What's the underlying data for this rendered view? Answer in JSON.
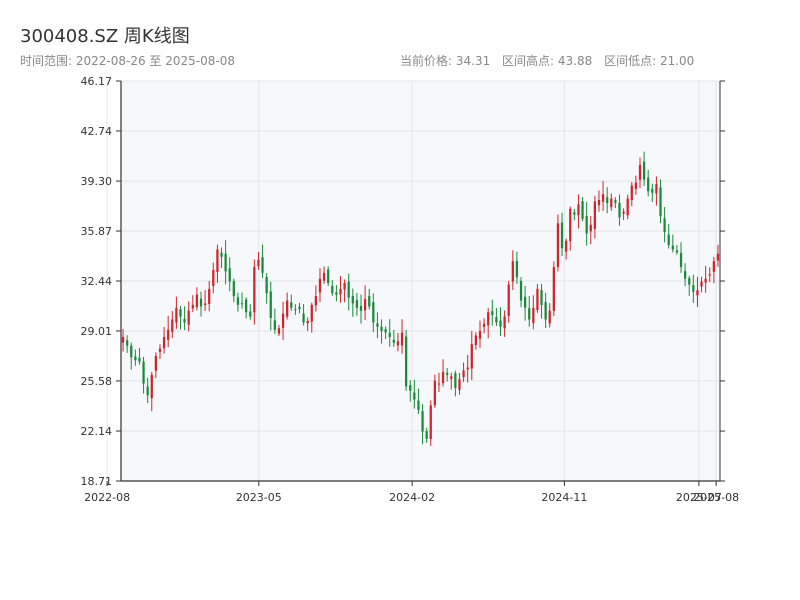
{
  "header": {
    "title": "300408.SZ 周K线图",
    "range_text": "时间范围: 2022-08-26 至 2025-08-08",
    "current_price": "当前价格: 34.31",
    "high": "区间高点: 43.88",
    "low": "区间低点: 21.00"
  },
  "colors": {
    "up": "#d0242b",
    "down": "#1a8a3a",
    "background": "#f6f8fb",
    "grid": "#e3e6ea",
    "axis": "#333333"
  },
  "chart_data": {
    "type": "candlestick",
    "title": "300408.SZ 周K线图",
    "xlabel": "",
    "ylabel": "",
    "ylim": [
      18.71,
      46.17
    ],
    "yticks": [
      "18.71",
      "22.14",
      "25.58",
      "29.01",
      "32.44",
      "35.87",
      "39.30",
      "42.74",
      "46.17"
    ],
    "xticks": [
      "2022-08",
      "2023-05",
      "2024-02",
      "2024-11",
      "2025-07",
      "2025-08"
    ],
    "grid": true,
    "start_date": "2022-08-26",
    "end_date": "2025-08-08",
    "close_series": [
      28.6,
      28.0,
      27.2,
      27.0,
      26.9,
      25.4,
      24.6,
      26.0,
      27.3,
      27.8,
      28.6,
      29.1,
      29.8,
      30.6,
      30.0,
      29.6,
      30.4,
      30.8,
      31.5,
      30.7,
      30.9,
      31.9,
      33.2,
      34.6,
      34.1,
      33.1,
      32.4,
      31.4,
      30.8,
      30.9,
      30.3,
      30.0,
      33.4,
      33.9,
      33.0,
      31.6,
      29.9,
      29.1,
      29.2,
      30.2,
      31.1,
      30.6,
      30.5,
      30.5,
      29.6,
      29.7,
      30.8,
      31.4,
      32.6,
      33.0,
      32.3,
      31.6,
      31.5,
      31.9,
      32.3,
      31.3,
      30.9,
      30.6,
      30.4,
      31.2,
      30.7,
      29.6,
      29.3,
      29.0,
      28.9,
      28.6,
      28.2,
      28.3,
      28.9,
      25.2,
      24.9,
      24.3,
      23.6,
      22.1,
      21.6,
      23.9,
      25.6,
      25.4,
      26.2,
      26.0,
      25.9,
      25.1,
      25.7,
      26.3,
      26.5,
      28.1,
      28.7,
      29.0,
      29.5,
      30.3,
      30.1,
      29.6,
      29.3,
      30.0,
      32.2,
      33.8,
      32.7,
      31.1,
      30.6,
      29.8,
      30.6,
      31.9,
      30.8,
      29.8,
      30.4,
      33.4,
      36.4,
      34.7,
      35.2,
      37.4,
      37.0,
      37.7,
      36.7,
      35.7,
      36.3,
      37.9,
      38.0,
      38.4,
      37.8,
      38.1,
      37.8,
      36.8,
      37.2,
      38.1,
      39.0,
      39.2,
      40.4,
      39.4,
      38.6,
      38.5,
      39.1,
      36.9,
      35.8,
      34.9,
      34.6,
      34.4,
      33.4,
      32.6,
      32.2,
      31.7,
      31.8,
      32.4,
      32.6,
      32.9,
      33.8,
      34.31
    ]
  }
}
